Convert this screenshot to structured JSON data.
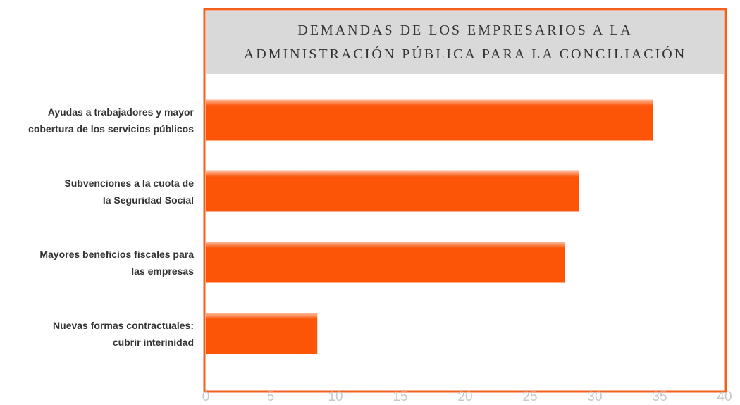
{
  "chart_data": {
    "type": "bar",
    "orientation": "horizontal",
    "title": "DEMANDAS DE LOS EMPRESARIOS A LA\nADMINISTRACIÓN PÚBLICA PARA LA CONCILIACIÓN",
    "categories": [
      "Ayudas a trabajadores y mayor\ncobertura de los servicios públicos",
      "Subvenciones a la cuota de\nla Seguridad Social",
      "Mayores beneficios fiscales para\nlas empresas",
      "Nuevas formas contractuales:\ncubrir interinidad"
    ],
    "values": [
      34.5,
      28.8,
      27.7,
      8.6
    ],
    "color": "#fc5508",
    "xlim": [
      0,
      40
    ],
    "xticks": [
      0,
      5,
      10,
      15,
      20,
      25,
      30,
      35,
      40
    ],
    "grid": false
  }
}
